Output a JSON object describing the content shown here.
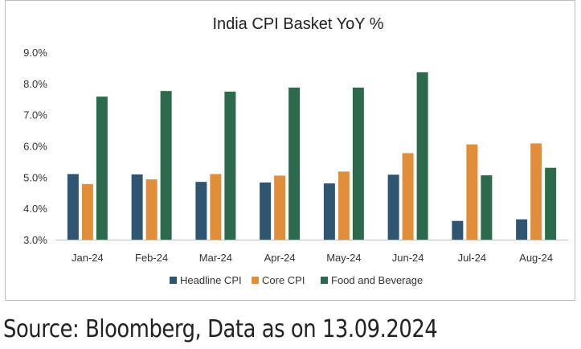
{
  "chart_data": {
    "type": "bar",
    "title": "India CPI Basket YoY %",
    "categories": [
      "Jan-24",
      "Feb-24",
      "Mar-24",
      "Apr-24",
      "May-24",
      "Jun-24",
      "Jul-24",
      "Aug-24"
    ],
    "series": [
      {
        "name": "Headline CPI",
        "color": "#2f5570",
        "values": [
          5.1,
          5.09,
          4.85,
          4.83,
          4.8,
          5.08,
          3.6,
          3.65
        ]
      },
      {
        "name": "Core CPI",
        "color": "#e08d3c",
        "values": [
          4.78,
          4.93,
          5.1,
          5.05,
          5.18,
          5.77,
          6.05,
          6.08
        ]
      },
      {
        "name": "Food and Beverage",
        "color": "#2d6a4b",
        "values": [
          7.58,
          7.76,
          7.74,
          7.87,
          7.87,
          8.36,
          5.06,
          5.3
        ]
      }
    ],
    "ylim": [
      3.0,
      9.0
    ],
    "yticks": [
      "3.0%",
      "4.0%",
      "5.0%",
      "6.0%",
      "7.0%",
      "8.0%",
      "9.0%"
    ],
    "grid": false,
    "legend": "bottom"
  },
  "source_note": "Source: Bloomberg, Data as on 13.09.2024"
}
